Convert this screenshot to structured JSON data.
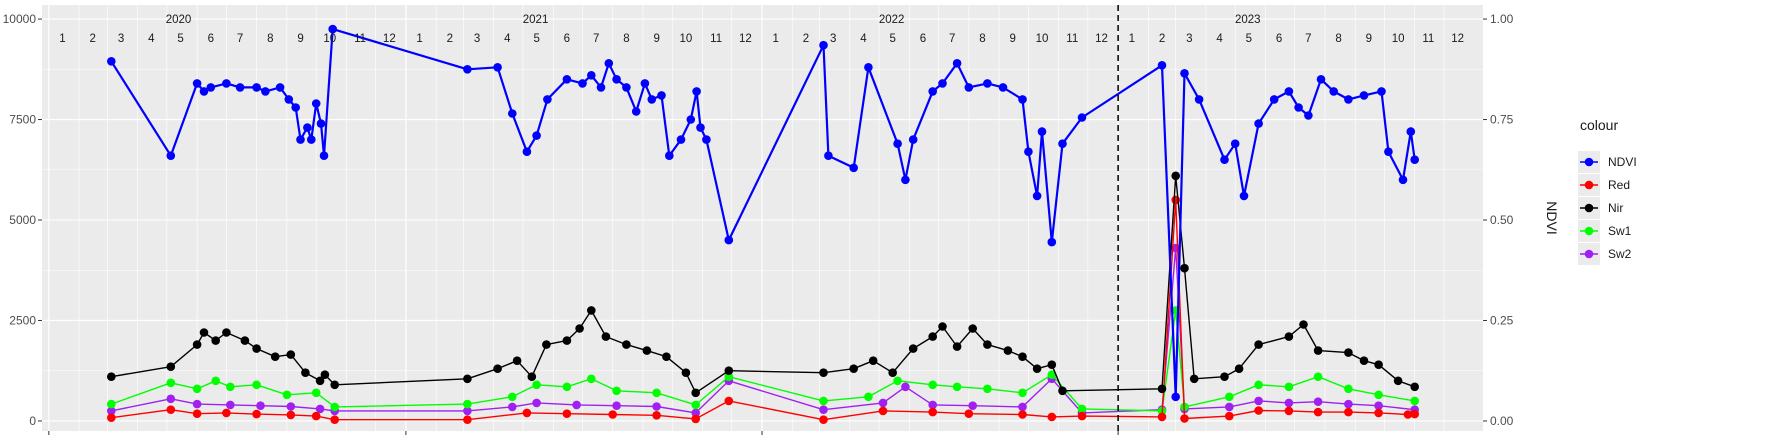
{
  "chart_data": {
    "type": "line",
    "x_axis": {
      "kind": "date",
      "range": [
        "2019-12-25",
        "2024-01-10"
      ],
      "years": [
        "2020",
        "2021",
        "2022",
        "2023"
      ],
      "month_tick_labels": [
        "1",
        "2",
        "3",
        "4",
        "5",
        "6",
        "7",
        "8",
        "9",
        "10",
        "11",
        "12"
      ],
      "major_ticks": [
        "2020-01-01",
        "2021-01-01",
        "2022-01-01",
        "2023-01-01"
      ]
    },
    "y_left": {
      "ticks": [
        "0",
        "2500",
        "5000",
        "7500",
        "10000"
      ],
      "ylim": [
        -250,
        10350
      ]
    },
    "y_right": {
      "label": "NDVI",
      "ticks": [
        "0.00",
        "0.25",
        "0.50",
        "0.75",
        "1.00"
      ],
      "ylim": [
        -0.025,
        1.035
      ]
    },
    "annotations": {
      "vline_date": "2023-01-01",
      "vline_style": "dashed"
    },
    "grid": true,
    "legend": {
      "title": "colour",
      "position": "right"
    },
    "series": [
      {
        "name": "NDVI",
        "color": "#0000ff",
        "axis": "right",
        "points": [
          [
            "2020-03-05",
            0.895
          ],
          [
            "2020-05-05",
            0.66
          ],
          [
            "2020-06-01",
            0.84
          ],
          [
            "2020-06-08",
            0.82
          ],
          [
            "2020-06-15",
            0.83
          ],
          [
            "2020-07-01",
            0.84
          ],
          [
            "2020-07-15",
            0.83
          ],
          [
            "2020-08-01",
            0.83
          ],
          [
            "2020-08-10",
            0.82
          ],
          [
            "2020-08-25",
            0.83
          ],
          [
            "2020-09-03",
            0.8
          ],
          [
            "2020-09-10",
            0.78
          ],
          [
            "2020-09-15",
            0.7
          ],
          [
            "2020-09-22",
            0.73
          ],
          [
            "2020-09-26",
            0.7
          ],
          [
            "2020-10-01",
            0.79
          ],
          [
            "2020-10-06",
            0.74
          ],
          [
            "2020-10-09",
            0.66
          ],
          [
            "2020-10-18",
            0.975
          ],
          [
            "2021-03-05",
            0.875
          ],
          [
            "2021-04-05",
            0.88
          ],
          [
            "2021-04-20",
            0.765
          ],
          [
            "2021-05-05",
            0.67
          ],
          [
            "2021-05-15",
            0.71
          ],
          [
            "2021-05-26",
            0.8
          ],
          [
            "2021-06-15",
            0.85
          ],
          [
            "2021-07-01",
            0.84
          ],
          [
            "2021-07-10",
            0.86
          ],
          [
            "2021-07-20",
            0.83
          ],
          [
            "2021-07-28",
            0.89
          ],
          [
            "2021-08-05",
            0.85
          ],
          [
            "2021-08-15",
            0.83
          ],
          [
            "2021-08-25",
            0.77
          ],
          [
            "2021-09-03",
            0.84
          ],
          [
            "2021-09-10",
            0.8
          ],
          [
            "2021-09-20",
            0.81
          ],
          [
            "2021-09-28",
            0.66
          ],
          [
            "2021-10-10",
            0.7
          ],
          [
            "2021-10-20",
            0.75
          ],
          [
            "2021-10-26",
            0.82
          ],
          [
            "2021-10-30",
            0.73
          ],
          [
            "2021-11-05",
            0.7
          ],
          [
            "2021-11-28",
            0.45
          ],
          [
            "2022-03-05",
            0.935
          ],
          [
            "2022-03-10",
            0.66
          ],
          [
            "2022-04-05",
            0.63
          ],
          [
            "2022-04-20",
            0.88
          ],
          [
            "2022-05-20",
            0.69
          ],
          [
            "2022-05-28",
            0.6
          ],
          [
            "2022-06-05",
            0.7
          ],
          [
            "2022-06-25",
            0.82
          ],
          [
            "2022-07-05",
            0.84
          ],
          [
            "2022-07-20",
            0.89
          ],
          [
            "2022-08-01",
            0.83
          ],
          [
            "2022-08-20",
            0.84
          ],
          [
            "2022-09-05",
            0.83
          ],
          [
            "2022-09-25",
            0.8
          ],
          [
            "2022-10-01",
            0.67
          ],
          [
            "2022-10-10",
            0.56
          ],
          [
            "2022-10-15",
            0.72
          ],
          [
            "2022-10-25",
            0.445
          ],
          [
            "2022-11-05",
            0.69
          ],
          [
            "2022-11-25",
            0.755
          ],
          [
            "2023-02-15",
            0.885
          ],
          [
            "2023-03-01",
            0.06
          ],
          [
            "2023-03-10",
            0.865
          ],
          [
            "2023-03-25",
            0.8
          ],
          [
            "2023-04-20",
            0.65
          ],
          [
            "2023-05-01",
            0.69
          ],
          [
            "2023-05-10",
            0.56
          ],
          [
            "2023-05-25",
            0.74
          ],
          [
            "2023-06-10",
            0.8
          ],
          [
            "2023-06-25",
            0.82
          ],
          [
            "2023-07-05",
            0.78
          ],
          [
            "2023-07-15",
            0.76
          ],
          [
            "2023-07-28",
            0.85
          ],
          [
            "2023-08-10",
            0.82
          ],
          [
            "2023-08-25",
            0.8
          ],
          [
            "2023-09-10",
            0.81
          ],
          [
            "2023-09-28",
            0.82
          ],
          [
            "2023-10-05",
            0.67
          ],
          [
            "2023-10-20",
            0.6
          ],
          [
            "2023-10-28",
            0.72
          ],
          [
            "2023-11-01",
            0.65
          ]
        ]
      },
      {
        "name": "Red",
        "color": "#ff0000",
        "axis": "left",
        "points": [
          [
            "2020-03-05",
            80
          ],
          [
            "2020-05-05",
            280
          ],
          [
            "2020-06-01",
            180
          ],
          [
            "2020-07-01",
            200
          ],
          [
            "2020-08-01",
            170
          ],
          [
            "2020-09-05",
            150
          ],
          [
            "2020-10-01",
            120
          ],
          [
            "2020-10-20",
            30
          ],
          [
            "2021-03-05",
            30
          ],
          [
            "2021-05-05",
            200
          ],
          [
            "2021-06-15",
            180
          ],
          [
            "2021-08-01",
            160
          ],
          [
            "2021-09-15",
            140
          ],
          [
            "2021-10-25",
            50
          ],
          [
            "2021-11-28",
            500
          ],
          [
            "2022-03-05",
            30
          ],
          [
            "2022-05-05",
            250
          ],
          [
            "2022-06-25",
            220
          ],
          [
            "2022-08-01",
            180
          ],
          [
            "2022-09-25",
            160
          ],
          [
            "2022-10-25",
            100
          ],
          [
            "2022-11-25",
            120
          ],
          [
            "2023-02-15",
            100
          ],
          [
            "2023-03-01",
            5500
          ],
          [
            "2023-03-10",
            60
          ],
          [
            "2023-04-25",
            120
          ],
          [
            "2023-05-25",
            260
          ],
          [
            "2023-06-25",
            250
          ],
          [
            "2023-07-25",
            220
          ],
          [
            "2023-08-25",
            220
          ],
          [
            "2023-09-25",
            200
          ],
          [
            "2023-10-25",
            160
          ],
          [
            "2023-11-01",
            170
          ]
        ]
      },
      {
        "name": "Nir",
        "color": "#000000",
        "axis": "left",
        "points": [
          [
            "2020-03-05",
            1100
          ],
          [
            "2020-05-05",
            1350
          ],
          [
            "2020-06-01",
            1900
          ],
          [
            "2020-06-08",
            2200
          ],
          [
            "2020-06-20",
            2000
          ],
          [
            "2020-07-01",
            2200
          ],
          [
            "2020-07-20",
            2000
          ],
          [
            "2020-08-01",
            1800
          ],
          [
            "2020-08-20",
            1600
          ],
          [
            "2020-09-05",
            1650
          ],
          [
            "2020-09-20",
            1200
          ],
          [
            "2020-10-05",
            1000
          ],
          [
            "2020-10-10",
            1150
          ],
          [
            "2020-10-20",
            900
          ],
          [
            "2021-03-05",
            1050
          ],
          [
            "2021-04-05",
            1300
          ],
          [
            "2021-04-25",
            1500
          ],
          [
            "2021-05-10",
            1100
          ],
          [
            "2021-05-25",
            1900
          ],
          [
            "2021-06-15",
            2000
          ],
          [
            "2021-06-28",
            2300
          ],
          [
            "2021-07-10",
            2750
          ],
          [
            "2021-07-25",
            2100
          ],
          [
            "2021-08-15",
            1900
          ],
          [
            "2021-09-05",
            1750
          ],
          [
            "2021-09-25",
            1600
          ],
          [
            "2021-10-15",
            1200
          ],
          [
            "2021-10-25",
            700
          ],
          [
            "2021-11-28",
            1250
          ],
          [
            "2022-03-05",
            1200
          ],
          [
            "2022-04-05",
            1300
          ],
          [
            "2022-04-25",
            1500
          ],
          [
            "2022-05-15",
            1200
          ],
          [
            "2022-06-05",
            1800
          ],
          [
            "2022-06-25",
            2100
          ],
          [
            "2022-07-05",
            2350
          ],
          [
            "2022-07-20",
            1850
          ],
          [
            "2022-08-05",
            2300
          ],
          [
            "2022-08-20",
            1900
          ],
          [
            "2022-09-10",
            1750
          ],
          [
            "2022-09-25",
            1600
          ],
          [
            "2022-10-10",
            1300
          ],
          [
            "2022-10-25",
            1400
          ],
          [
            "2022-11-05",
            750
          ],
          [
            "2023-02-15",
            800
          ],
          [
            "2023-03-01",
            6100
          ],
          [
            "2023-03-10",
            3800
          ],
          [
            "2023-03-20",
            1050
          ],
          [
            "2023-04-20",
            1100
          ],
          [
            "2023-05-05",
            1300
          ],
          [
            "2023-05-25",
            1900
          ],
          [
            "2023-06-25",
            2100
          ],
          [
            "2023-07-10",
            2400
          ],
          [
            "2023-07-25",
            1750
          ],
          [
            "2023-08-25",
            1700
          ],
          [
            "2023-09-10",
            1500
          ],
          [
            "2023-09-25",
            1400
          ],
          [
            "2023-10-15",
            1000
          ],
          [
            "2023-11-01",
            850
          ]
        ]
      },
      {
        "name": "Sw1",
        "color": "#00ff00",
        "axis": "left",
        "points": [
          [
            "2020-03-05",
            420
          ],
          [
            "2020-05-05",
            950
          ],
          [
            "2020-06-01",
            800
          ],
          [
            "2020-06-20",
            1000
          ],
          [
            "2020-07-05",
            850
          ],
          [
            "2020-08-01",
            900
          ],
          [
            "2020-09-01",
            650
          ],
          [
            "2020-10-01",
            700
          ],
          [
            "2020-10-20",
            350
          ],
          [
            "2021-03-05",
            420
          ],
          [
            "2021-04-20",
            600
          ],
          [
            "2021-05-15",
            900
          ],
          [
            "2021-06-15",
            850
          ],
          [
            "2021-07-10",
            1050
          ],
          [
            "2021-08-05",
            750
          ],
          [
            "2021-09-15",
            700
          ],
          [
            "2021-10-25",
            400
          ],
          [
            "2021-11-28",
            1100
          ],
          [
            "2022-03-05",
            500
          ],
          [
            "2022-04-20",
            600
          ],
          [
            "2022-05-20",
            1000
          ],
          [
            "2022-06-25",
            900
          ],
          [
            "2022-07-20",
            850
          ],
          [
            "2022-08-20",
            800
          ],
          [
            "2022-09-25",
            700
          ],
          [
            "2022-10-25",
            1150
          ],
          [
            "2022-11-25",
            300
          ],
          [
            "2023-02-15",
            250
          ],
          [
            "2023-03-01",
            2750
          ],
          [
            "2023-03-10",
            350
          ],
          [
            "2023-04-25",
            600
          ],
          [
            "2023-05-25",
            900
          ],
          [
            "2023-06-25",
            850
          ],
          [
            "2023-07-25",
            1100
          ],
          [
            "2023-08-25",
            800
          ],
          [
            "2023-09-25",
            650
          ],
          [
            "2023-11-01",
            500
          ]
        ]
      },
      {
        "name": "Sw2",
        "color": "#a020f0",
        "axis": "left",
        "points": [
          [
            "2020-03-05",
            250
          ],
          [
            "2020-05-05",
            550
          ],
          [
            "2020-06-01",
            420
          ],
          [
            "2020-07-05",
            400
          ],
          [
            "2020-08-05",
            380
          ],
          [
            "2020-09-05",
            360
          ],
          [
            "2020-10-05",
            300
          ],
          [
            "2020-10-20",
            250
          ],
          [
            "2021-03-05",
            250
          ],
          [
            "2021-04-20",
            350
          ],
          [
            "2021-05-15",
            450
          ],
          [
            "2021-06-25",
            400
          ],
          [
            "2021-08-05",
            380
          ],
          [
            "2021-09-15",
            360
          ],
          [
            "2021-10-25",
            200
          ],
          [
            "2021-11-28",
            1000
          ],
          [
            "2022-03-05",
            280
          ],
          [
            "2022-05-05",
            450
          ],
          [
            "2022-05-28",
            850
          ],
          [
            "2022-06-25",
            400
          ],
          [
            "2022-08-05",
            380
          ],
          [
            "2022-09-25",
            350
          ],
          [
            "2022-10-25",
            1050
          ],
          [
            "2022-11-25",
            200
          ],
          [
            "2023-02-15",
            280
          ],
          [
            "2023-03-01",
            4300
          ],
          [
            "2023-03-10",
            300
          ],
          [
            "2023-04-25",
            350
          ],
          [
            "2023-05-25",
            500
          ],
          [
            "2023-06-25",
            450
          ],
          [
            "2023-07-25",
            480
          ],
          [
            "2023-08-25",
            420
          ],
          [
            "2023-09-25",
            380
          ],
          [
            "2023-11-01",
            280
          ]
        ]
      }
    ]
  }
}
